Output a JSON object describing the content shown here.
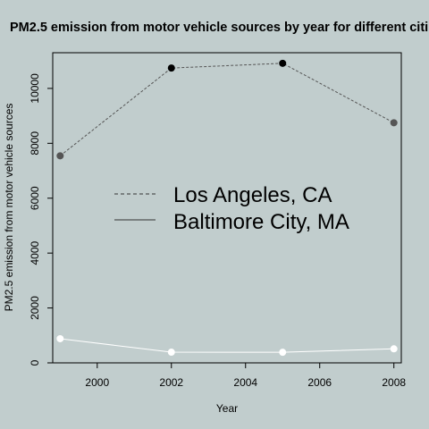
{
  "chart_data": {
    "type": "line",
    "title": "PM2.5 emission from motor vehicle sources by year for different citi",
    "xlabel": "Year",
    "ylabel": "PM2.5 emission from motor vehicle sources",
    "x": [
      1999,
      2002,
      2005,
      2008
    ],
    "xlim": [
      1998.8,
      2008.2
    ],
    "ylim": [
      0,
      11300
    ],
    "x_ticks": [
      2000,
      2002,
      2004,
      2006,
      2008
    ],
    "y_ticks": [
      0,
      2000,
      4000,
      6000,
      8000,
      10000
    ],
    "series": [
      {
        "name": "Los Angeles, CA",
        "values": [
          7544,
          10742,
          10915,
          8749
        ],
        "line_color": "#555555",
        "line_style": "dashed",
        "point_colors": [
          "#555555",
          "#000000",
          "#000000",
          "#555555"
        ]
      },
      {
        "name": "Baltimore City, MA",
        "values": [
          880,
          390,
          385,
          512
        ],
        "line_color": "#ffffff",
        "line_style": "solid",
        "point_colors": [
          "#ffffff",
          "#ffffff",
          "#ffffff",
          "#ffffff"
        ]
      }
    ],
    "legend": {
      "placement": "center",
      "entries": [
        {
          "label": "Los Angeles, CA",
          "line_style": "dashed"
        },
        {
          "label": "Baltimore City, MA",
          "line_style": "solid"
        }
      ]
    },
    "grid": false,
    "background": "#c1cdcd"
  }
}
